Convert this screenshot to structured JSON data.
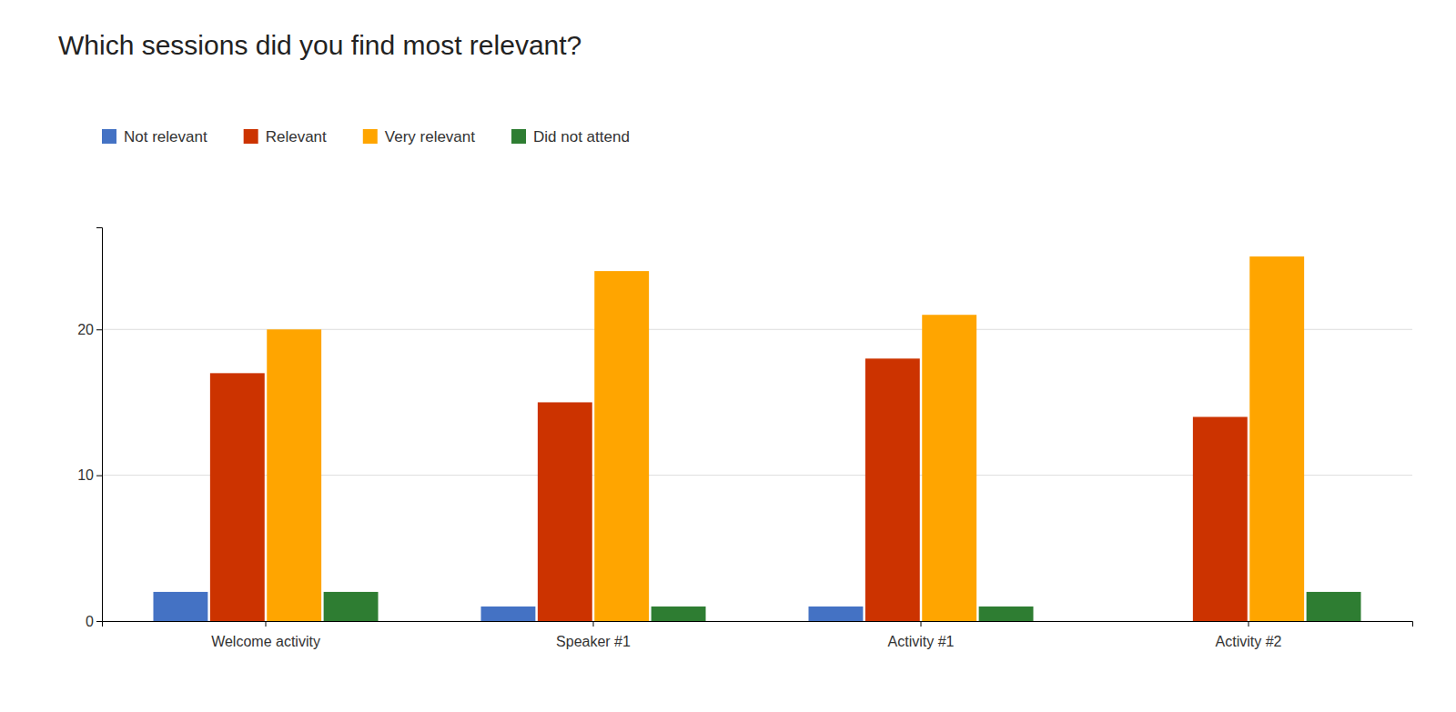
{
  "chart_data": {
    "type": "bar",
    "title": "Which sessions did you find most relevant?",
    "categories": [
      "Welcome activity",
      "Speaker #1",
      "Activity #1",
      "Activity #2"
    ],
    "series": [
      {
        "name": "Not relevant",
        "color": "#4472C4",
        "values": [
          2,
          1,
          1,
          0
        ]
      },
      {
        "name": "Relevant",
        "color": "#CC3300",
        "values": [
          17,
          15,
          18,
          14
        ]
      },
      {
        "name": "Very relevant",
        "color": "#FFA500",
        "values": [
          20,
          24,
          21,
          25
        ]
      },
      {
        "name": "Did not attend",
        "color": "#2E7D32",
        "values": [
          2,
          1,
          1,
          2
        ]
      }
    ],
    "ylim": [
      0,
      27
    ],
    "yticks": [
      0,
      10,
      20
    ],
    "grid": true,
    "legend": "top-left"
  }
}
